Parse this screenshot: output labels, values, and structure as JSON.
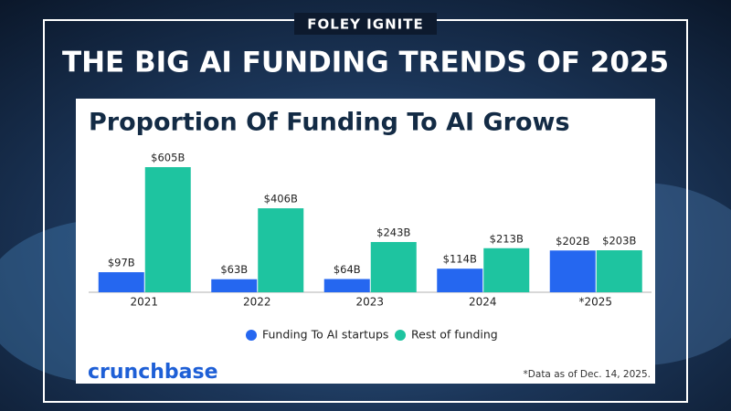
{
  "brand": "FOLEY IGNITE",
  "banner_title": "THE BIG AI FUNDING TRENDS OF 2025",
  "chart_data": {
    "type": "bar",
    "title": "Proportion Of Funding To AI Grows",
    "categories": [
      "2021",
      "2022",
      "2023",
      "2024",
      "*2025"
    ],
    "series": [
      {
        "name": "Funding To AI startups",
        "color": "#2567f0",
        "values": [
          97,
          63,
          64,
          114,
          202
        ],
        "value_labels": [
          "$97B",
          "$63B",
          "$64B",
          "$114B",
          "$202B"
        ]
      },
      {
        "name": "Rest of funding",
        "color": "#1ec4a0",
        "values": [
          605,
          406,
          243,
          213,
          203
        ],
        "value_labels": [
          "$605B",
          "$406B",
          "$243B",
          "$213B",
          "$203B"
        ]
      }
    ]
  },
  "footer": {
    "logo": "crunchbase",
    "note": "*Data as of Dec. 14, 2025."
  }
}
